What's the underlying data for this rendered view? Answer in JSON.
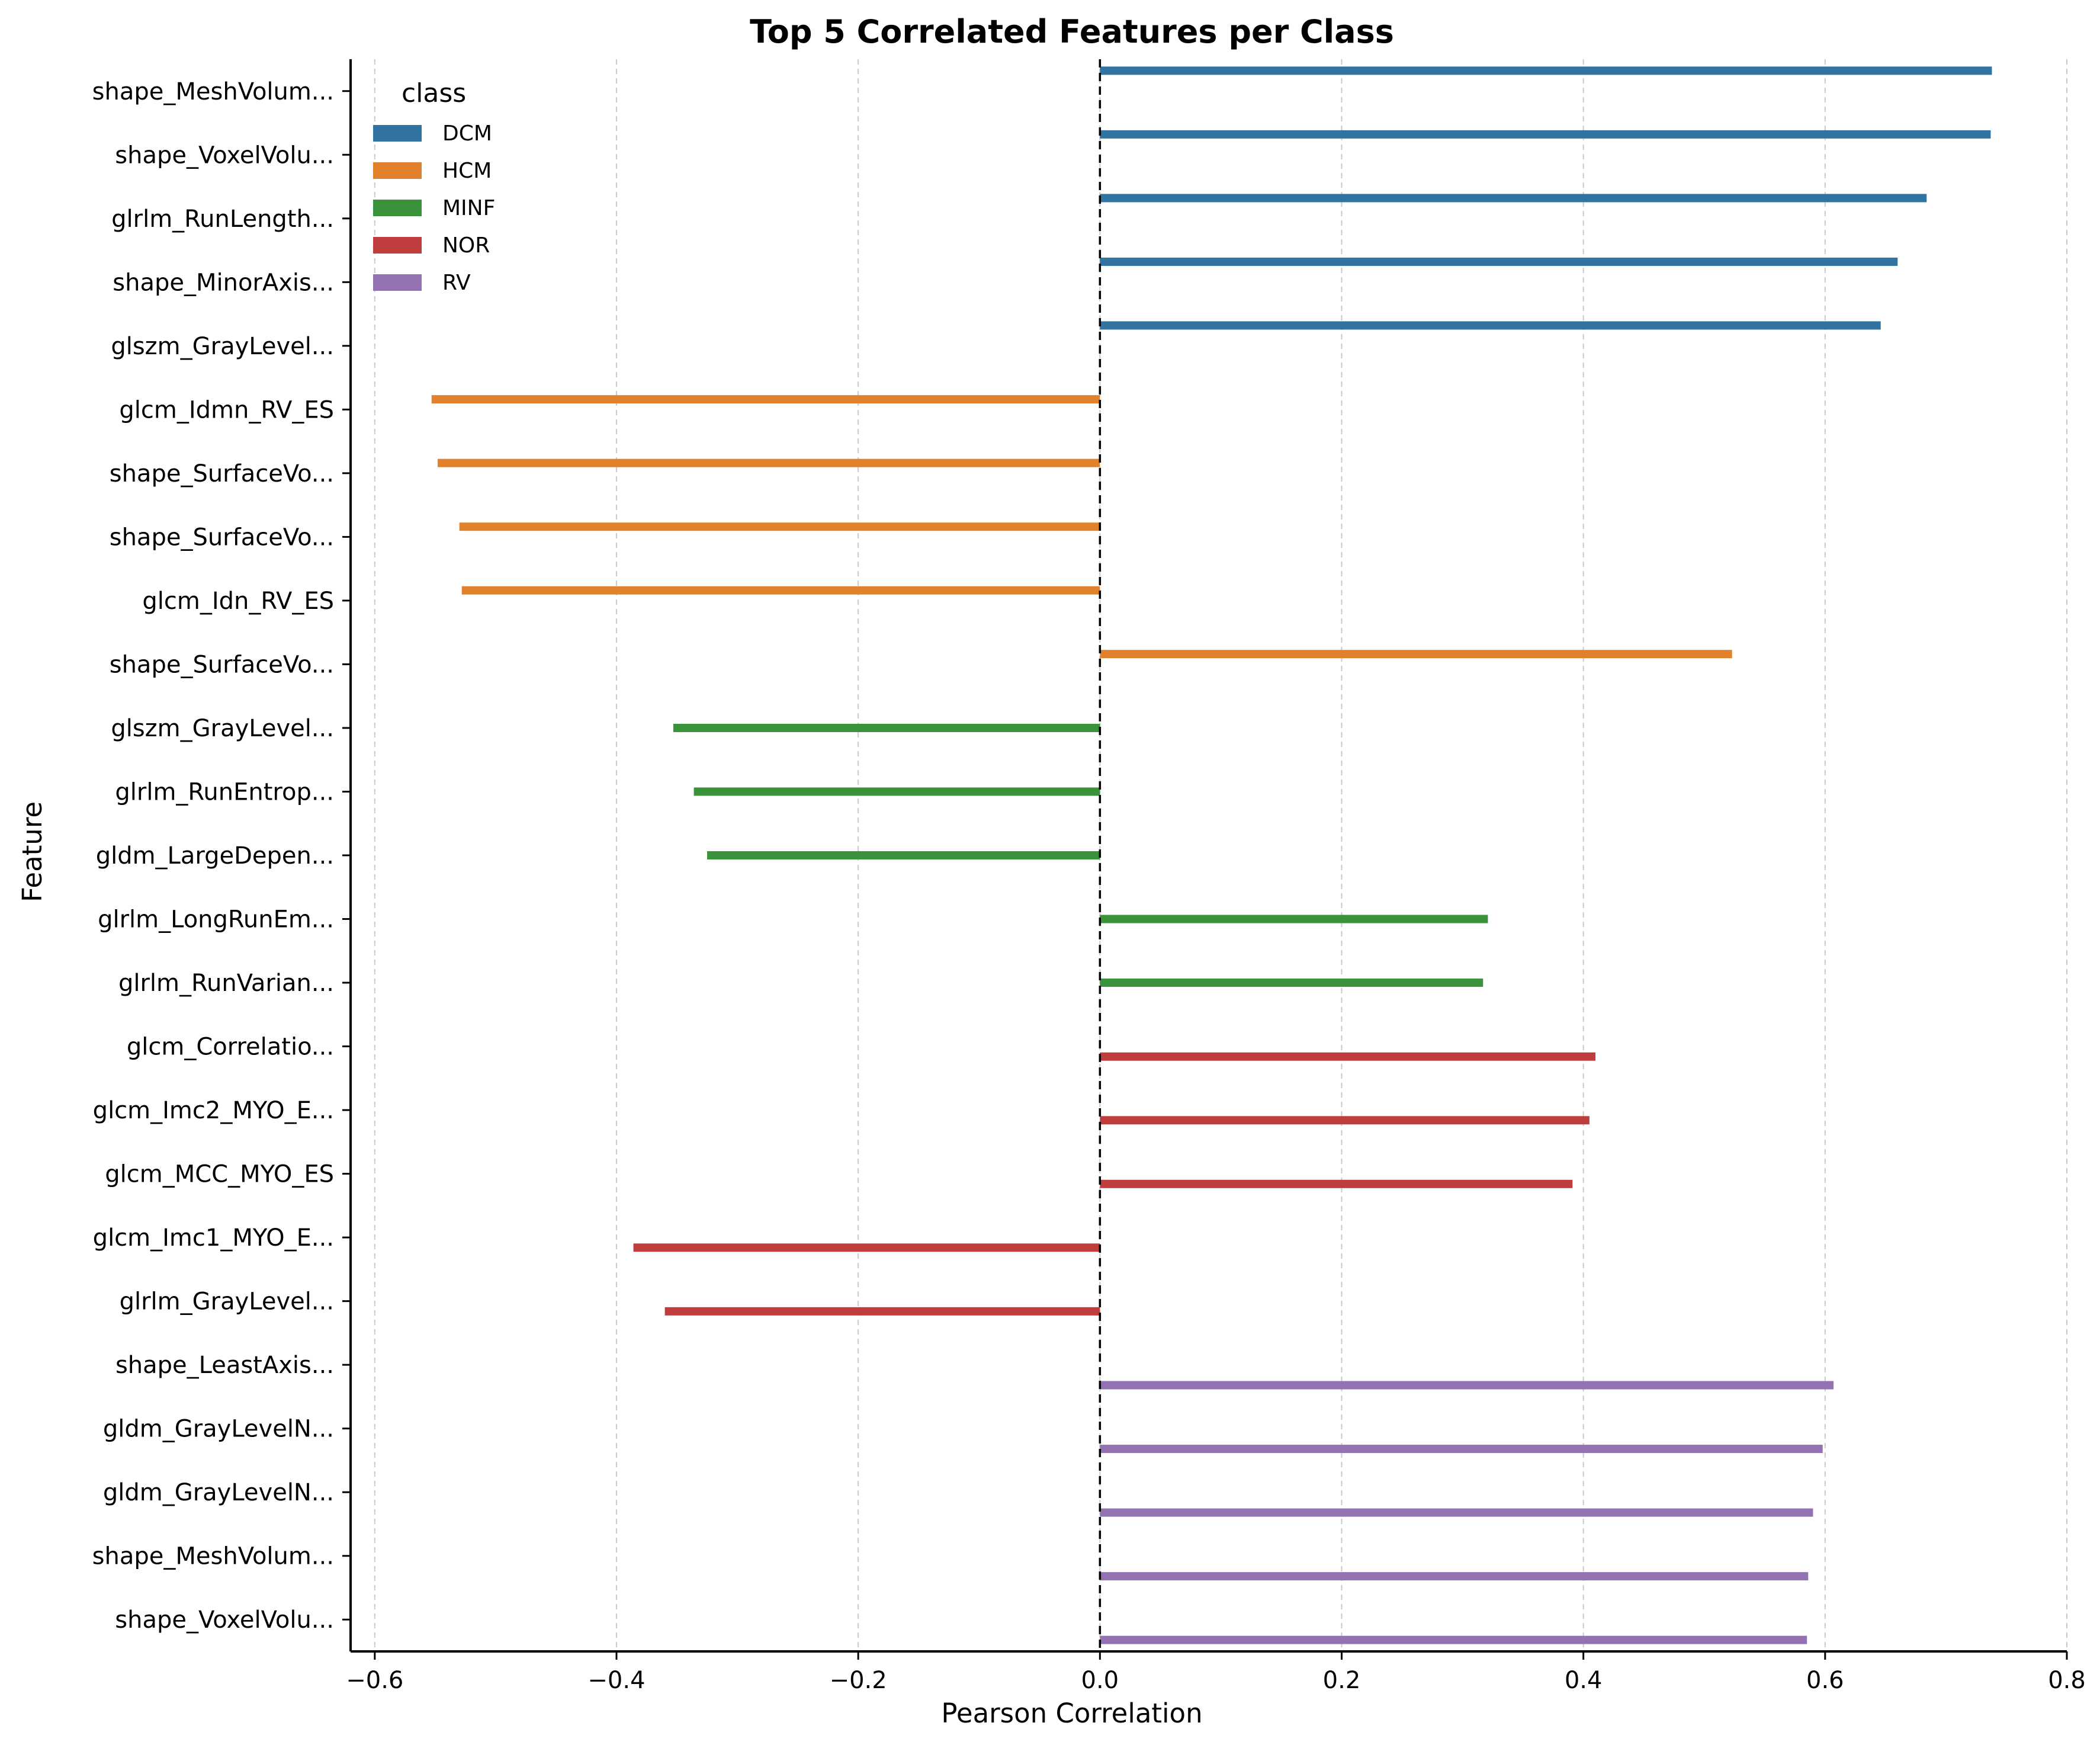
{
  "chart_data": {
    "type": "bar",
    "orientation": "horizontal",
    "title": "Top 5 Correlated Features per Class",
    "xlabel": "Pearson Correlation",
    "ylabel": "Feature",
    "xlim": [
      -0.62,
      0.8
    ],
    "xticks": [
      -0.6,
      -0.4,
      -0.2,
      0.0,
      0.2,
      0.4,
      0.6,
      0.8
    ],
    "xtick_labels": [
      "−0.6",
      "−0.4",
      "−0.2",
      "0.0",
      "0.2",
      "0.4",
      "0.6",
      "0.8"
    ],
    "grid": "x, dashed",
    "zero_line": "dashed",
    "legend": {
      "title": "class",
      "position": "top-left",
      "entries": [
        {
          "name": "DCM",
          "color": "#3274a1"
        },
        {
          "name": "HCM",
          "color": "#e1812c"
        },
        {
          "name": "MINF",
          "color": "#3a923a"
        },
        {
          "name": "NOR",
          "color": "#c03d3e"
        },
        {
          "name": "RV",
          "color": "#9372b2"
        }
      ]
    },
    "categories": [
      "shape_MeshVolum...",
      "shape_VoxelVolu...",
      "glrlm_RunLength...",
      "shape_MinorAxis...",
      "glszm_GrayLevel...",
      "glcm_Idmn_RV_ES",
      "shape_SurfaceVo...",
      "shape_SurfaceVo...",
      "glcm_Idn_RV_ES",
      "shape_SurfaceVo...",
      "glszm_GrayLevel...",
      "glrlm_RunEntrop...",
      "gldm_LargeDepen...",
      "glrlm_LongRunEm...",
      "glrlm_RunVarian...",
      "glcm_Correlatio...",
      "glcm_Imc2_MYO_E...",
      "glcm_MCC_MYO_ES",
      "glcm_Imc1_MYO_E...",
      "glrlm_GrayLevel...",
      "shape_LeastAxis...",
      "gldm_GrayLevelN...",
      "gldm_GrayLevelN...",
      "shape_MeshVolum...",
      "shape_VoxelVolu..."
    ],
    "series": [
      {
        "name": "DCM",
        "values": [
          0.738,
          0.737,
          0.684,
          0.66,
          0.646,
          null,
          null,
          null,
          null,
          null,
          null,
          null,
          null,
          null,
          null,
          null,
          null,
          null,
          null,
          null,
          null,
          null,
          null,
          null,
          null
        ]
      },
      {
        "name": "HCM",
        "values": [
          null,
          null,
          null,
          null,
          null,
          -0.553,
          -0.548,
          -0.53,
          -0.528,
          0.523,
          null,
          null,
          null,
          null,
          null,
          null,
          null,
          null,
          null,
          null,
          null,
          null,
          null,
          null,
          null
        ]
      },
      {
        "name": "MINF",
        "values": [
          null,
          null,
          null,
          null,
          null,
          null,
          null,
          null,
          null,
          null,
          -0.353,
          -0.336,
          -0.325,
          0.321,
          0.317,
          null,
          null,
          null,
          null,
          null,
          null,
          null,
          null,
          null,
          null
        ]
      },
      {
        "name": "NOR",
        "values": [
          null,
          null,
          null,
          null,
          null,
          null,
          null,
          null,
          null,
          null,
          null,
          null,
          null,
          null,
          null,
          0.41,
          0.405,
          0.391,
          -0.386,
          -0.36,
          null,
          null,
          null,
          null,
          null
        ]
      },
      {
        "name": "RV",
        "values": [
          null,
          null,
          null,
          null,
          null,
          null,
          null,
          null,
          null,
          null,
          null,
          null,
          null,
          null,
          null,
          null,
          null,
          null,
          null,
          null,
          0.607,
          0.598,
          0.59,
          0.586,
          0.585
        ]
      }
    ]
  }
}
